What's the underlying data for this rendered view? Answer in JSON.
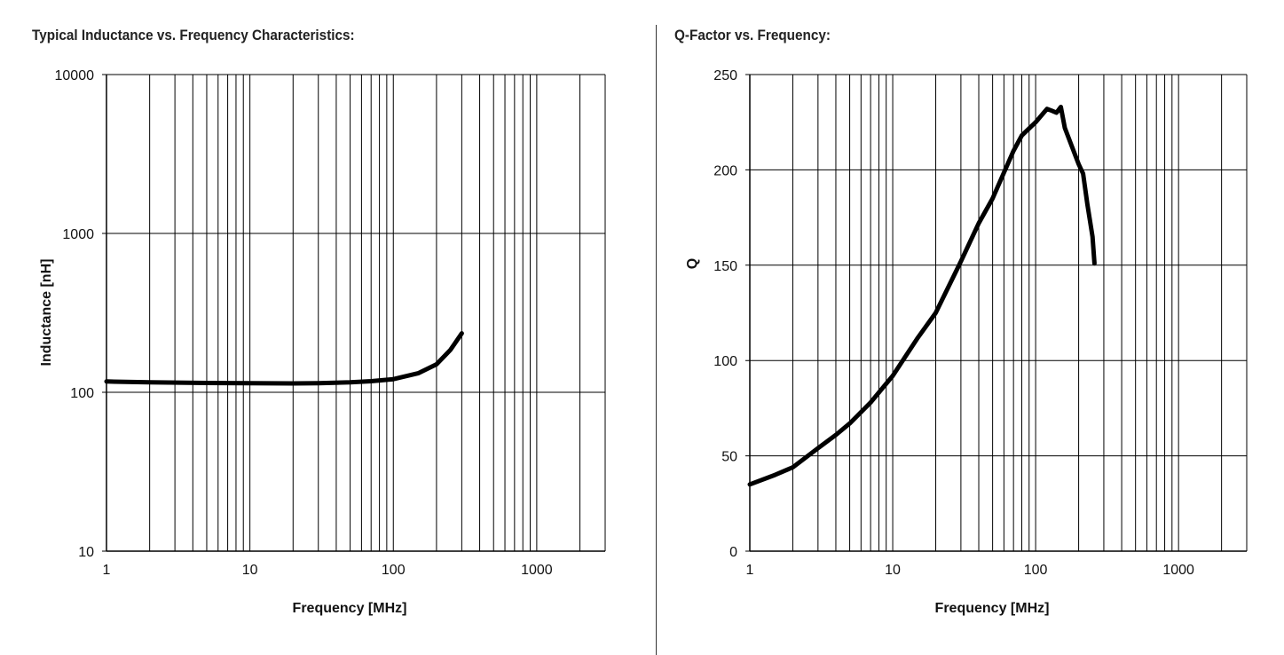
{
  "chart_data": [
    {
      "type": "line",
      "title": "Typical Inductance vs. Frequency Characteristics:",
      "xlabel": "Frequency [MHz]",
      "ylabel": "Inductance [nH]",
      "xscale": "log",
      "yscale": "log",
      "xlim": [
        1,
        3000
      ],
      "ylim": [
        10,
        10000
      ],
      "xticks": [
        "1",
        "10",
        "100",
        "1000"
      ],
      "yticks": [
        "10",
        "100",
        "1000",
        "10000"
      ],
      "grid": true,
      "series": [
        {
          "name": "Inductance",
          "x": [
            1,
            2,
            5,
            10,
            20,
            30,
            50,
            70,
            100,
            150,
            200,
            250,
            300
          ],
          "y": [
            117,
            115.5,
            114.5,
            114,
            113.8,
            114,
            115.5,
            117.5,
            121,
            132,
            150,
            185,
            235
          ]
        }
      ]
    },
    {
      "type": "line",
      "title": "Q-Factor vs. Frequency:",
      "xlabel": "Frequency [MHz]",
      "ylabel": "Q",
      "xscale": "log",
      "yscale": "linear",
      "xlim": [
        1,
        3000
      ],
      "ylim": [
        0,
        250
      ],
      "xticks": [
        "1",
        "10",
        "100",
        "1000"
      ],
      "yticks": [
        "0",
        "50",
        "100",
        "150",
        "200",
        "250"
      ],
      "grid": true,
      "series": [
        {
          "name": "Q",
          "x": [
            1,
            1.5,
            2,
            3,
            4,
            5,
            7,
            10,
            15,
            20,
            30,
            40,
            50,
            70,
            80,
            100,
            120,
            130,
            140,
            150,
            160,
            180,
            200,
            215,
            230,
            250,
            258
          ],
          "y": [
            35,
            40,
            44,
            54,
            61,
            67,
            78,
            92,
            112,
            125,
            152,
            172,
            185,
            210,
            218,
            225,
            232,
            231,
            230,
            233,
            222,
            212,
            203,
            198,
            182,
            165,
            151
          ]
        }
      ]
    }
  ]
}
